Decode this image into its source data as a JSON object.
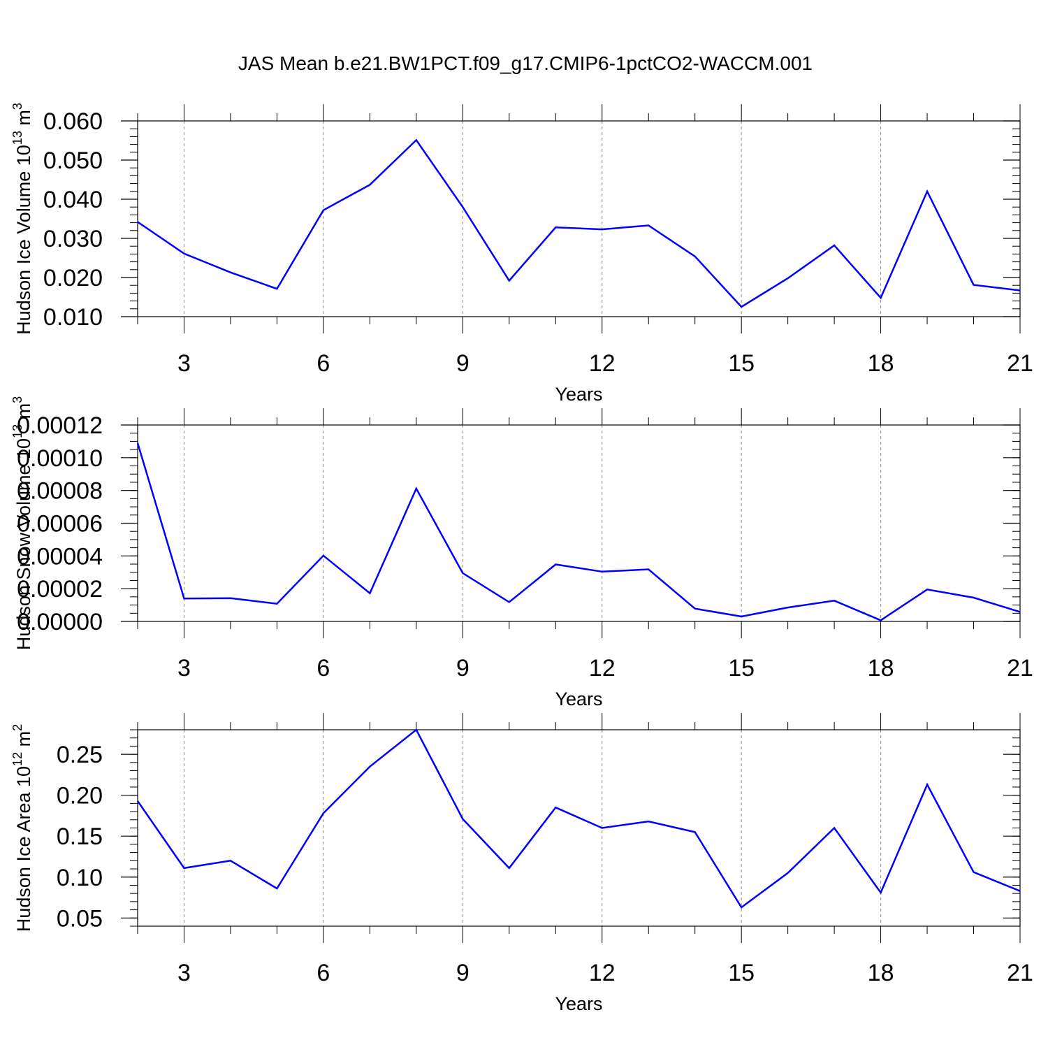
{
  "title": "JAS Mean b.e21.BW1PCT.f09_g17.CMIP6-1pctCO2-WACCM.001",
  "colors": {
    "line": "#0000ff",
    "grid": "#888888",
    "axis": "#000000"
  },
  "chart_data": [
    {
      "type": "line",
      "title": "",
      "xlabel": "Years",
      "ylabel": "Hudson Ice Volume 10",
      "ylabel_exp": "13",
      "ylabel_unit": " m",
      "ylabel_unit_exp": "3",
      "xlim": [
        2,
        21
      ],
      "ylim": [
        0.01,
        0.06
      ],
      "xticks": [
        3,
        6,
        9,
        12,
        15,
        18,
        21
      ],
      "xtick_labels": [
        "3",
        "6",
        "9",
        "12",
        "15",
        "18",
        "21"
      ],
      "yticks": [
        0.01,
        0.02,
        0.03,
        0.04,
        0.05,
        0.06
      ],
      "ytick_labels": [
        "0.010",
        "0.020",
        "0.030",
        "0.040",
        "0.050",
        "0.060"
      ],
      "yminor_step": 0.002,
      "grid": "vertical dashed at major x ticks",
      "x": [
        2,
        3,
        4,
        5,
        6,
        7,
        8,
        9,
        10,
        11,
        12,
        13,
        14,
        15,
        16,
        17,
        18,
        19,
        20,
        21
      ],
      "series": [
        {
          "values": [
            0.0342,
            0.0261,
            0.0213,
            0.0171,
            0.0372,
            0.0437,
            0.0551,
            0.038,
            0.0192,
            0.0328,
            0.0323,
            0.0333,
            0.0254,
            0.0125,
            0.0198,
            0.0282,
            0.0148,
            0.042,
            0.0181,
            0.0167
          ]
        }
      ]
    },
    {
      "type": "line",
      "title": "",
      "xlabel": "Years",
      "ylabel": "Hudson Snow Volume 10",
      "ylabel_exp": "13",
      "ylabel_unit": " m",
      "ylabel_unit_exp": "3",
      "xlim": [
        2,
        21
      ],
      "ylim": [
        0.0,
        0.00012
      ],
      "xticks": [
        3,
        6,
        9,
        12,
        15,
        18,
        21
      ],
      "xtick_labels": [
        "3",
        "6",
        "9",
        "12",
        "15",
        "18",
        "21"
      ],
      "yticks": [
        0.0,
        2e-05,
        4e-05,
        6e-05,
        8e-05,
        0.0001,
        0.00012
      ],
      "ytick_labels": [
        "0.00000",
        "0.00002",
        "0.00004",
        "0.00006",
        "0.00008",
        "0.00010",
        "0.00012"
      ],
      "yminor_step": 5e-06,
      "grid": "vertical dashed at major x ticks",
      "x": [
        2,
        3,
        4,
        5,
        6,
        7,
        8,
        9,
        10,
        11,
        12,
        13,
        14,
        15,
        16,
        17,
        18,
        19,
        20,
        21
      ],
      "series": [
        {
          "values": [
            0.000109,
            1.4e-05,
            1.42e-05,
            1.08e-05,
            4.02e-05,
            1.72e-05,
            8.12e-05,
            2.95e-05,
            1.18e-05,
            3.48e-05,
            3.04e-05,
            3.18e-05,
            7.8e-06,
            3e-06,
            8.5e-06,
            1.27e-05,
            7e-07,
            1.95e-05,
            1.45e-05,
            5.8e-06
          ]
        }
      ]
    },
    {
      "type": "line",
      "title": "",
      "xlabel": "Years",
      "ylabel": "Hudson Ice Area 10",
      "ylabel_exp": "12",
      "ylabel_unit": " m",
      "ylabel_unit_exp": "2",
      "xlim": [
        2,
        21
      ],
      "ylim": [
        0.04,
        0.28
      ],
      "xticks": [
        3,
        6,
        9,
        12,
        15,
        18,
        21
      ],
      "xtick_labels": [
        "3",
        "6",
        "9",
        "12",
        "15",
        "18",
        "21"
      ],
      "yticks": [
        0.05,
        0.1,
        0.15,
        0.2,
        0.25
      ],
      "ytick_labels": [
        "0.05",
        "0.10",
        "0.15",
        "0.20",
        "0.25"
      ],
      "yminor_step": 0.01,
      "grid": "vertical dashed at major x ticks",
      "x": [
        2,
        3,
        4,
        5,
        6,
        7,
        8,
        9,
        10,
        11,
        12,
        13,
        14,
        15,
        16,
        17,
        18,
        19,
        20,
        21
      ],
      "series": [
        {
          "values": [
            0.193,
            0.111,
            0.12,
            0.086,
            0.178,
            0.235,
            0.28,
            0.171,
            0.111,
            0.185,
            0.16,
            0.168,
            0.155,
            0.063,
            0.105,
            0.16,
            0.081,
            0.213,
            0.106,
            0.083
          ]
        }
      ]
    }
  ]
}
